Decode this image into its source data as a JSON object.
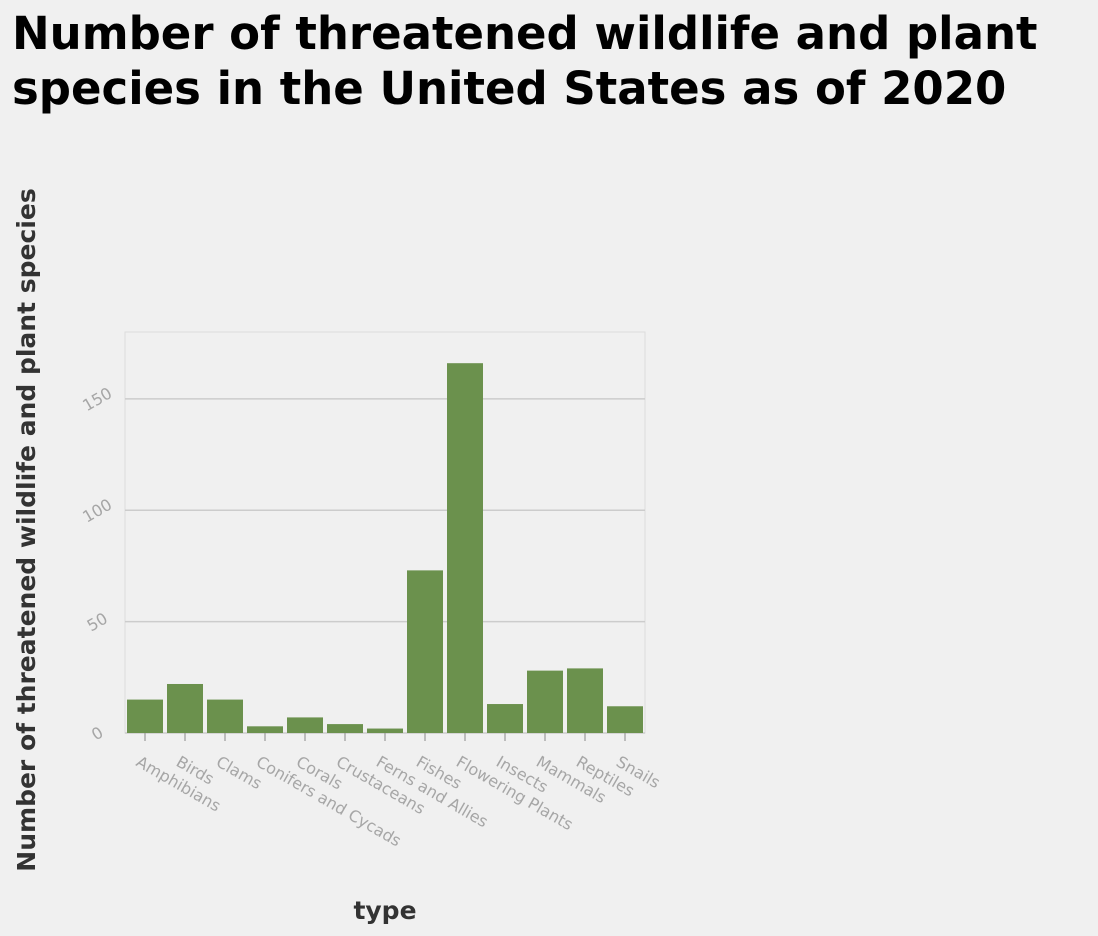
{
  "title_line1": "Number of threatened wildlife and plant",
  "title_line2": "species in the United States as of 2020",
  "chart_data": {
    "type": "bar",
    "title": "Number of threatened wildlife and plant species in the United States as of 2020",
    "xlabel": "type",
    "ylabel": "Number of threatened wildlife and plant species",
    "categories": [
      "Amphibians",
      "Birds",
      "Clams",
      "Conifers and Cycads",
      "Corals",
      "Crustaceans",
      "Ferns and Allies",
      "Fishes",
      "Flowering Plants",
      "Insects",
      "Mammals",
      "Reptiles",
      "Snails"
    ],
    "values": [
      15,
      22,
      15,
      3,
      7,
      4,
      2,
      73,
      166,
      13,
      28,
      29,
      12
    ],
    "ylim": [
      0,
      180
    ],
    "yticks": [
      0,
      50,
      100,
      150
    ],
    "grid": true,
    "bar_color": "#6b914d",
    "grid_color": "#cccccc"
  }
}
